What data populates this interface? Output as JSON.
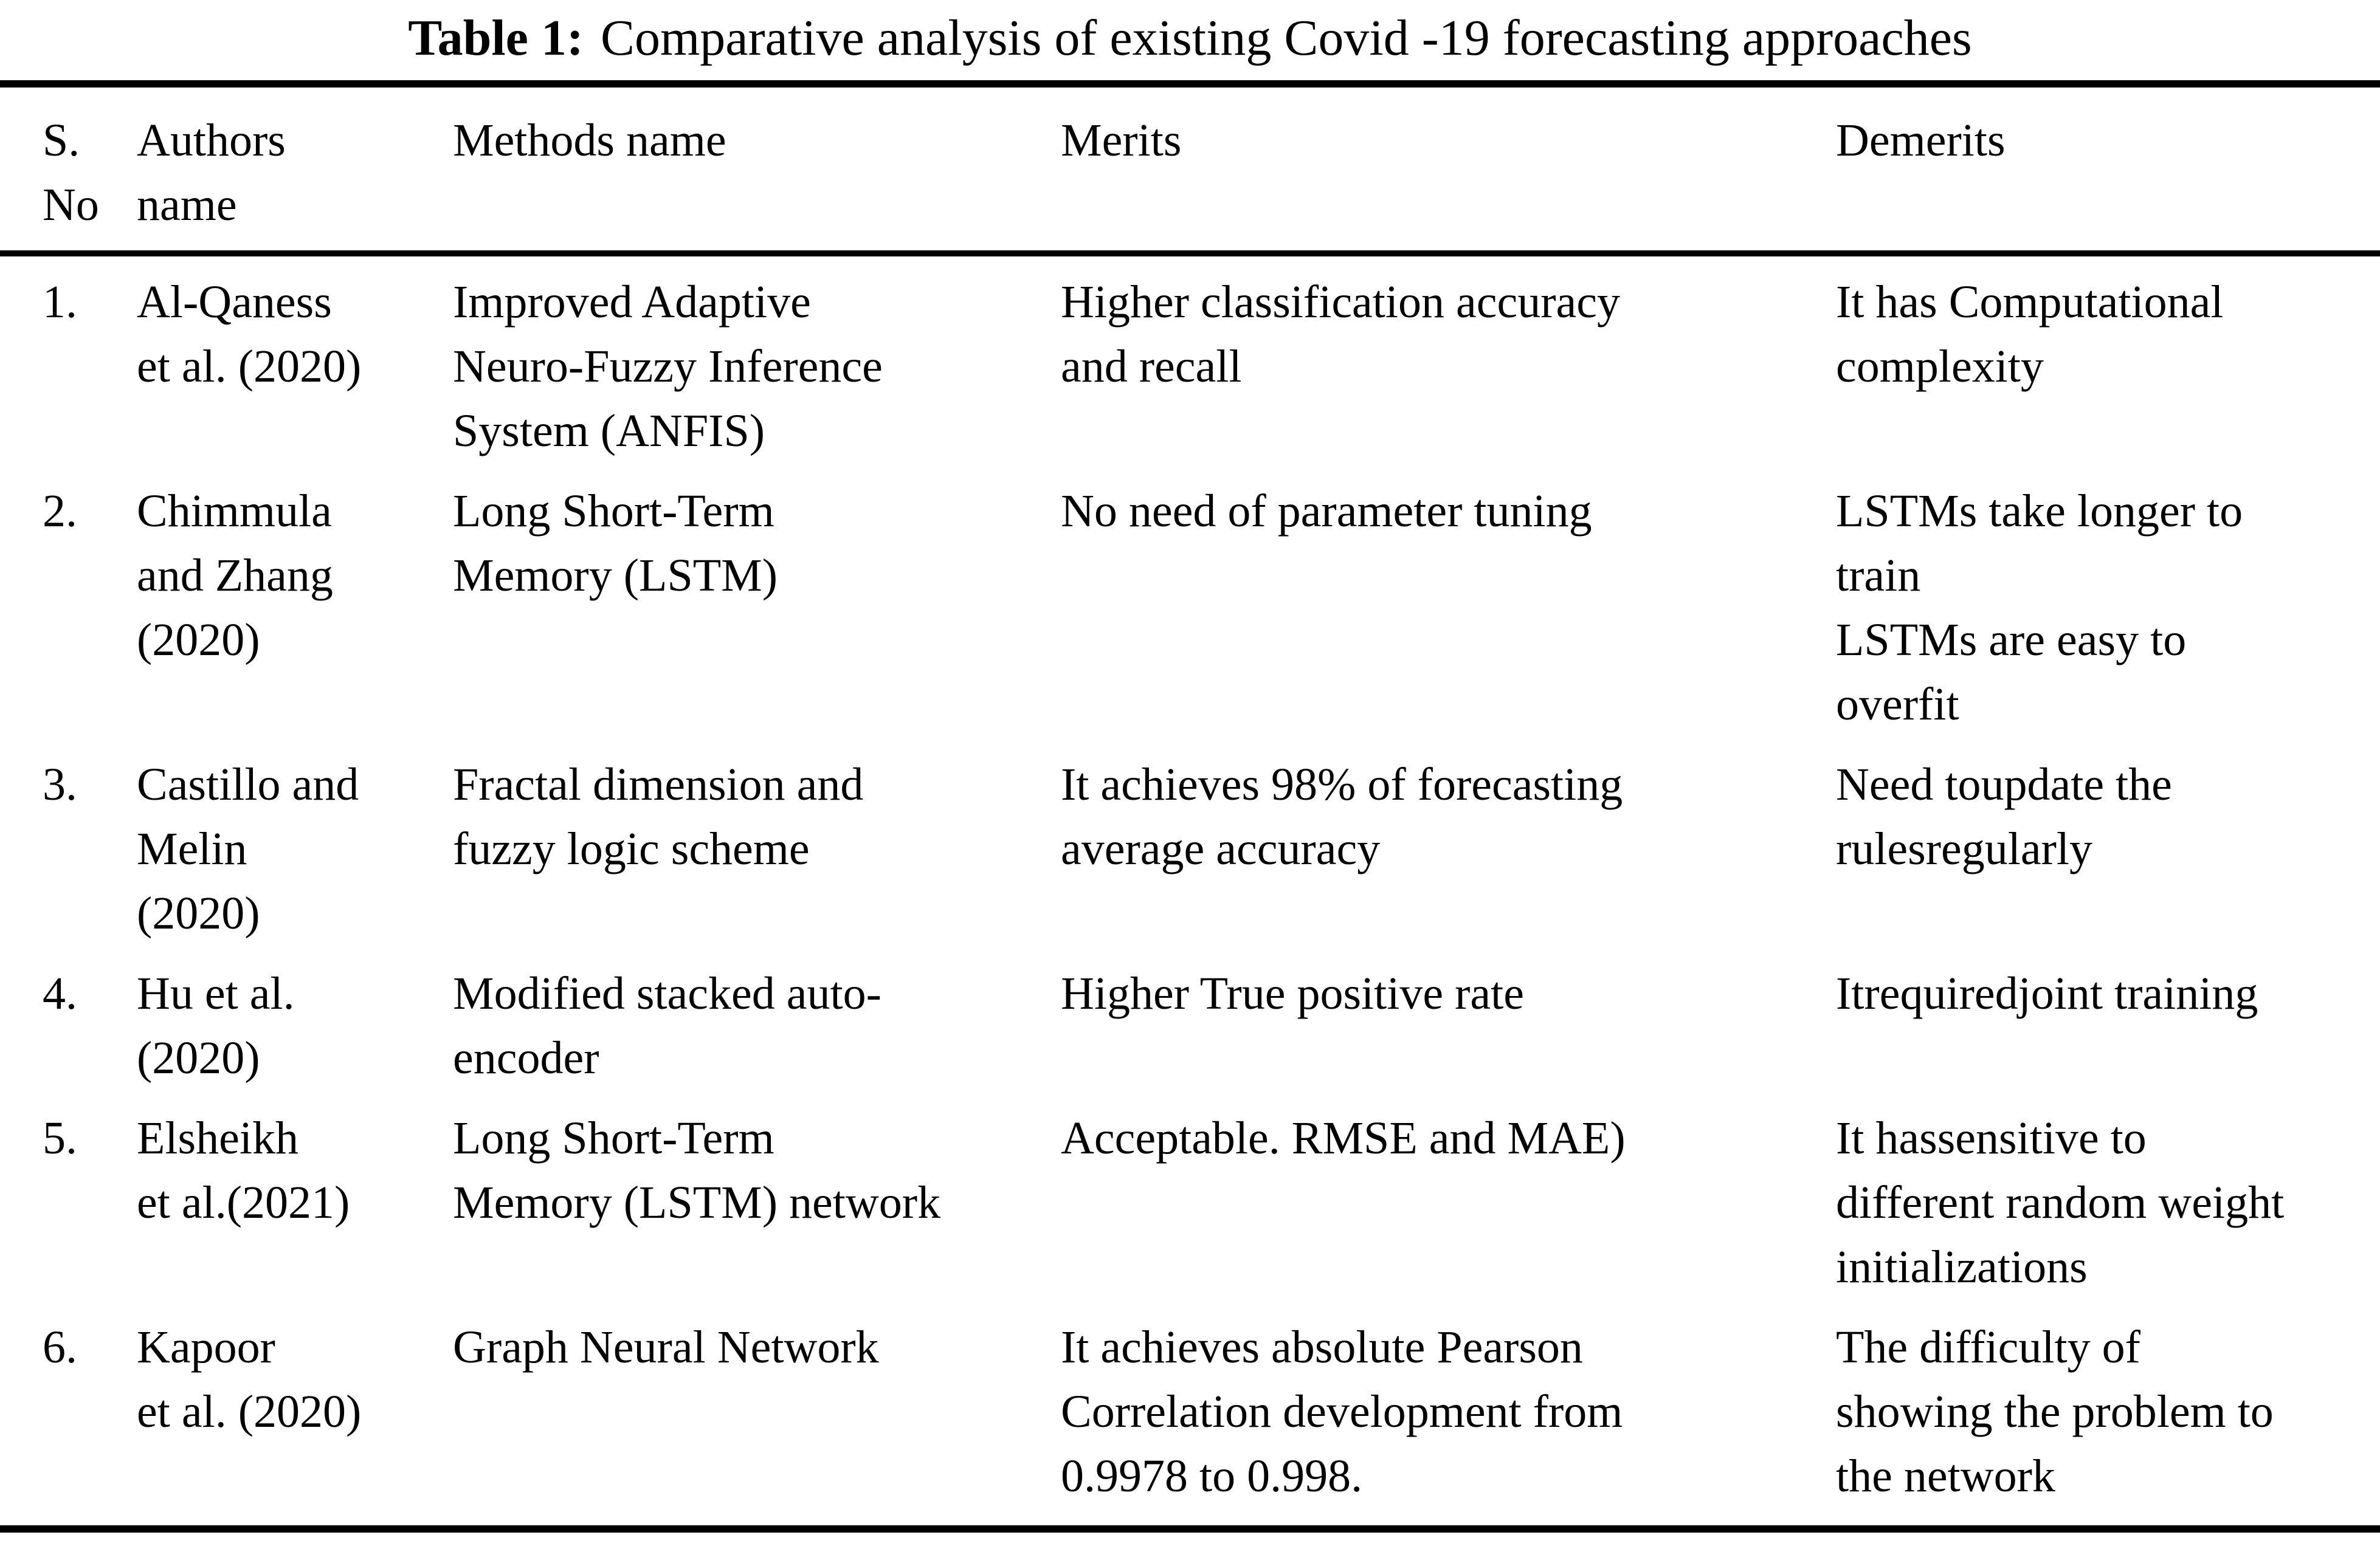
{
  "title": {
    "label": "Table 1:",
    "text": "Comparative analysis of existing Covid -19 forecasting approaches"
  },
  "table": {
    "columns": [
      {
        "key": "sno",
        "label": "S.\nNo"
      },
      {
        "key": "authors",
        "label": "Authors\nname"
      },
      {
        "key": "methods",
        "label": "Methods name"
      },
      {
        "key": "merits",
        "label": "Merits"
      },
      {
        "key": "demerits",
        "label": "Demerits"
      }
    ],
    "rows": [
      {
        "sno": "1.",
        "authors": "Al-Qaness\net al. (2020)",
        "methods": "Improved Adaptive\nNeuro-Fuzzy Inference\nSystem (ANFIS)",
        "merits": "Higher classification accuracy\nand recall",
        "demerits": "It has Computational\ncomplexity"
      },
      {
        "sno": "2.",
        "authors": "Chimmula\nand Zhang\n(2020)",
        "methods": "Long Short-Term\nMemory (LSTM)",
        "merits": "No need of parameter tuning",
        "demerits": "LSTMs take longer to\ntrain\nLSTMs are easy to\noverfit"
      },
      {
        "sno": "3.",
        "authors": "Castillo and\nMelin\n(2020)",
        "methods": "Fractal dimension and\nfuzzy logic scheme",
        "merits": "It achieves 98% of forecasting\naverage accuracy",
        "demerits": "Need toupdate the\nrulesregularly"
      },
      {
        "sno": "4.",
        "authors": "Hu et al.\n(2020)",
        "methods": "Modified stacked auto-\nencoder",
        "merits": "Higher True positive rate",
        "demerits": "Itrequiredjoint training"
      },
      {
        "sno": "5.",
        "authors": "Elsheikh\net al.(2021)",
        "methods": "Long Short-Term\nMemory (LSTM) network",
        "merits": "Acceptable. RMSE and MAE)",
        "demerits": "It hassensitive to\ndifferent random weight\ninitializations"
      },
      {
        "sno": "6.",
        "authors": "Kapoor\net al. (2020)",
        "methods": "Graph Neural Network",
        "merits": "It achieves absolute Pearson\nCorrelation development from\n0.9978 to 0.998.",
        "demerits": "The difficulty of\nshowing the problem to\nthe network"
      }
    ]
  },
  "colors": {
    "background": "#ffffff",
    "text": "#000000",
    "rule": "#000000"
  }
}
